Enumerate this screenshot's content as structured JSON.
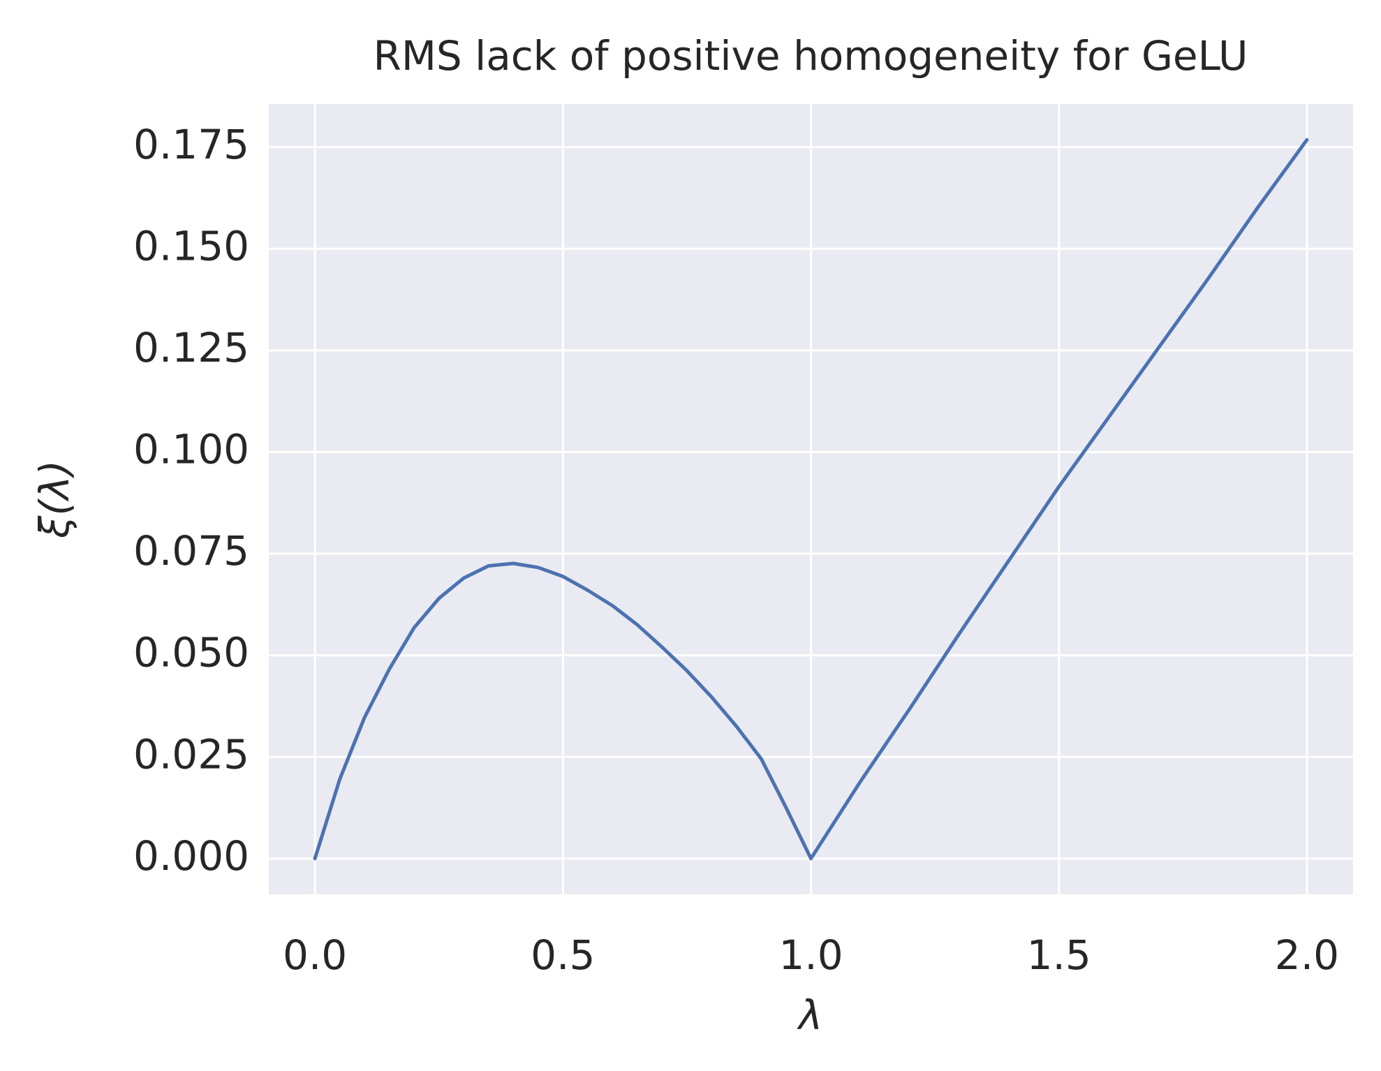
{
  "chart_data": {
    "type": "line",
    "title": "RMS lack of positive homogeneity for GeLU",
    "x_label": "λ",
    "y_label": "ξ(λ)",
    "x": [
      0,
      0.05,
      0.1,
      0.15,
      0.2,
      0.25,
      0.3,
      0.35,
      0.4,
      0.45,
      0.5,
      0.55,
      0.6,
      0.65,
      0.7,
      0.75,
      0.8,
      0.85,
      0.9,
      0.95,
      1.0,
      1.1,
      1.2,
      1.3,
      1.4,
      1.5,
      1.6,
      1.7,
      1.8,
      1.9,
      2.0
    ],
    "values": [
      0,
      0.0195,
      0.0347,
      0.0466,
      0.0568,
      0.064,
      0.069,
      0.072,
      0.0726,
      0.0716,
      0.0694,
      0.066,
      0.0622,
      0.0575,
      0.052,
      0.0462,
      0.0397,
      0.0325,
      0.0245,
      0.0125,
      0,
      0.019,
      0.037,
      0.0555,
      0.0735,
      0.0915,
      0.1085,
      0.1255,
      0.1425,
      0.16,
      0.1768
    ],
    "color": "#4c72b0",
    "xlim": [
      -0.093,
      2.093
    ],
    "ylim": [
      -0.0088,
      0.1856
    ],
    "xticks": [
      {
        "value": 0,
        "label": "0.0"
      },
      0.5,
      {
        "value": 1,
        "label": "1.0"
      },
      1.5,
      {
        "value": 2,
        "label": "2.0"
      }
    ],
    "yticks": [
      {
        "value": 0,
        "label": "0.000"
      },
      0.025,
      {
        "value": 0.05,
        "label": "0.050"
      },
      0.075,
      {
        "value": 0.1,
        "label": "0.100"
      },
      0.125,
      {
        "value": 0.15,
        "label": "0.150"
      },
      0.175
    ],
    "grid": true
  }
}
